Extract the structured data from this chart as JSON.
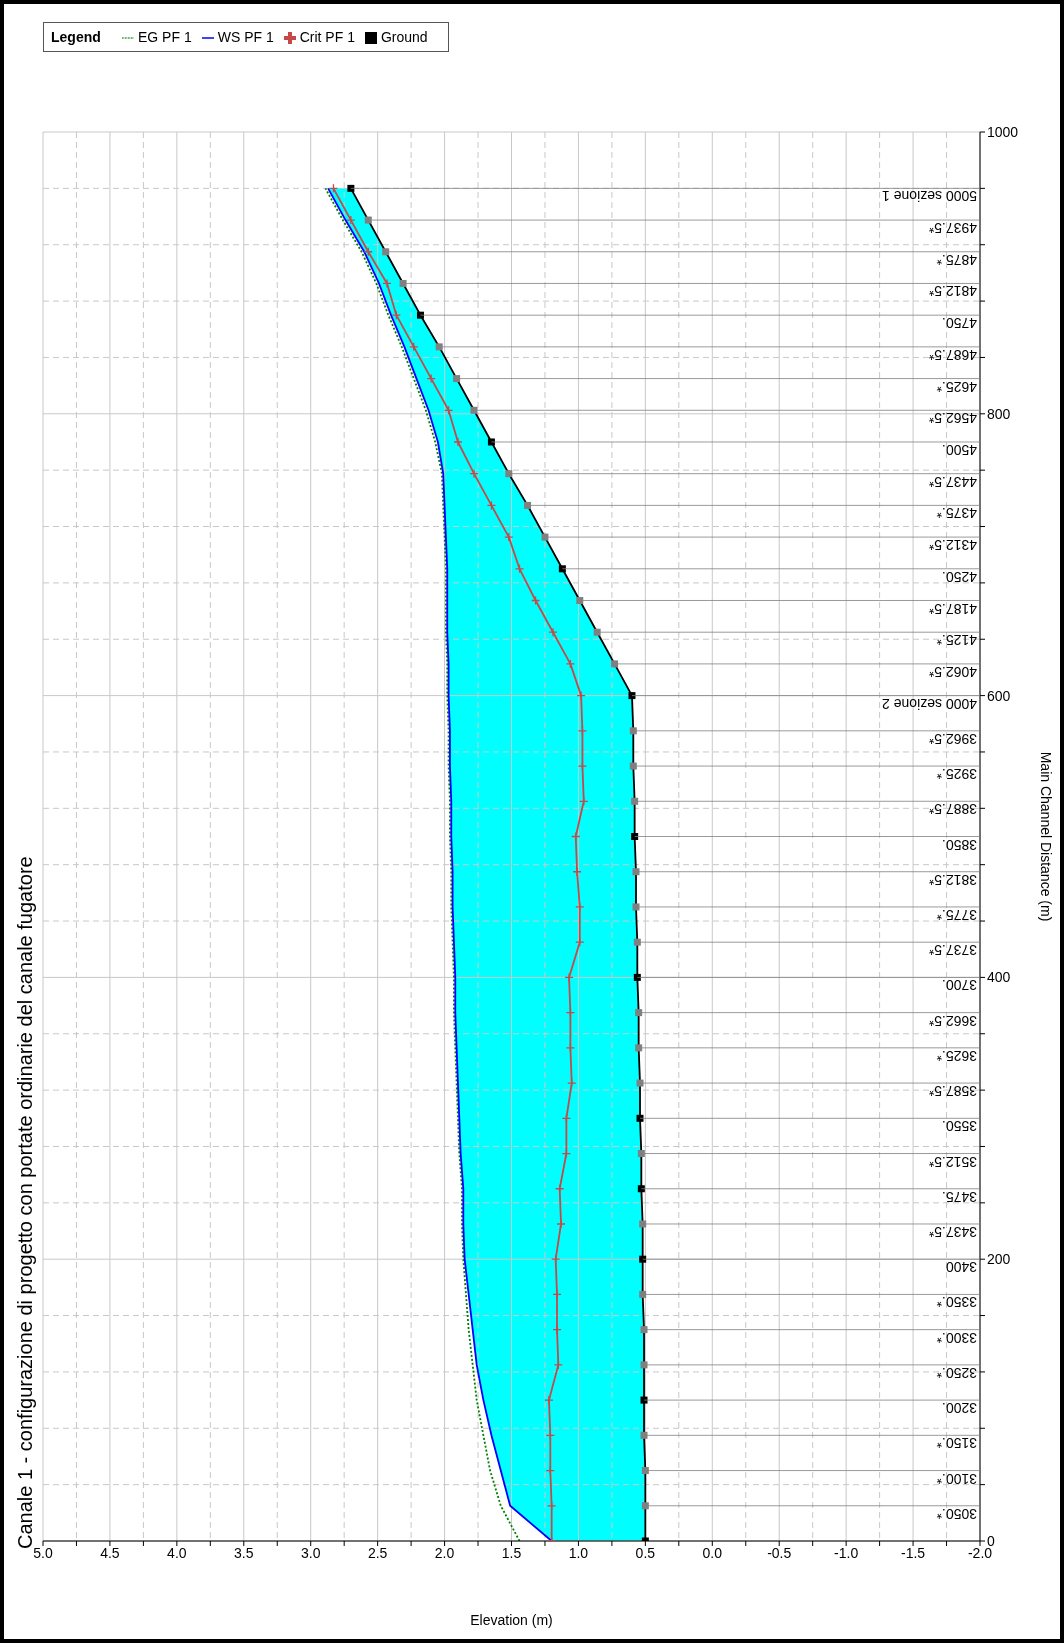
{
  "chart_data": {
    "type": "line",
    "title": "Canale 1 - configurazione di progetto con portate ordinarie del canale fugatore",
    "xlabel": "Elevation (m)",
    "ylabel": "Main Channel Distance (m)",
    "legend_title": "Legend",
    "legend": "top left",
    "grid": true,
    "xlim": [
      5,
      -2
    ],
    "ylim": [
      0,
      1000
    ],
    "xticks": [
      {
        "value": 5,
        "label": "5.0"
      },
      {
        "value": 4.75,
        "label": null
      },
      {
        "value": 4.5,
        "label": "4.5"
      },
      {
        "value": 4.25,
        "label": null
      },
      {
        "value": 4,
        "label": "4.0"
      },
      {
        "value": 3.75,
        "label": null
      },
      {
        "value": 3.5,
        "label": "3.5"
      },
      {
        "value": 3.25,
        "label": null
      },
      {
        "value": 3,
        "label": "3.0"
      },
      {
        "value": 2.75,
        "label": null
      },
      {
        "value": 2.5,
        "label": "2.5"
      },
      {
        "value": 2.25,
        "label": null
      },
      {
        "value": 2,
        "label": "2.0"
      },
      {
        "value": 1.75,
        "label": null
      },
      {
        "value": 1.5,
        "label": "1.5"
      },
      {
        "value": 1.25,
        "label": null
      },
      {
        "value": 1,
        "label": "1.0"
      },
      {
        "value": 0.75,
        "label": null
      },
      {
        "value": 0.5,
        "label": "0.5"
      },
      {
        "value": 0.25,
        "label": null
      },
      {
        "value": 0,
        "label": "0.0"
      },
      {
        "value": -0.25,
        "label": null
      },
      {
        "value": -0.5,
        "label": "-0.5"
      },
      {
        "value": -0.75,
        "label": null
      },
      {
        "value": -1,
        "label": "-1.0"
      },
      {
        "value": -1.25,
        "label": null
      },
      {
        "value": -1.5,
        "label": "-1.5"
      },
      {
        "value": -1.75,
        "label": null
      },
      {
        "value": -2,
        "label": "-2.0"
      }
    ],
    "yticks": [
      0,
      {
        "value": 40,
        "label": null
      },
      {
        "value": 80,
        "label": null
      },
      {
        "value": 120,
        "label": null
      },
      {
        "value": 160,
        "label": null
      },
      200,
      {
        "value": 240,
        "label": null
      },
      {
        "value": 280,
        "label": null
      },
      {
        "value": 320,
        "label": null
      },
      {
        "value": 360,
        "label": null
      },
      400,
      {
        "value": 440,
        "label": null
      },
      {
        "value": 480,
        "label": null
      },
      {
        "value": 520,
        "label": null
      },
      {
        "value": 560,
        "label": null
      },
      600,
      {
        "value": 640,
        "label": null
      },
      {
        "value": 680,
        "label": null
      },
      {
        "value": 720,
        "label": null
      },
      {
        "value": 760,
        "label": null
      },
      800,
      {
        "value": 840,
        "label": null
      },
      {
        "value": 880,
        "label": null
      },
      {
        "value": 920,
        "label": null
      },
      {
        "value": 960,
        "label": null
      },
      1000
    ],
    "series": [
      {
        "name": "EG  PF 1",
        "color": "#008000",
        "line_style": "dotted",
        "x": [
          1.44,
          1.58,
          1.66,
          1.71,
          1.76,
          1.79,
          1.82,
          1.84,
          1.86,
          1.87,
          1.87,
          1.89,
          1.9,
          1.91,
          1.92,
          1.93,
          1.93,
          1.94,
          1.95,
          1.95,
          1.96,
          1.96,
          1.97,
          1.97,
          1.98,
          1.98,
          1.99,
          1.99,
          1.99,
          2.0,
          2.01,
          2.02,
          2.07,
          2.14,
          2.23,
          2.32,
          2.42,
          2.51,
          2.62,
          2.76,
          2.89
        ],
        "values": [
          0,
          25,
          50,
          75,
          100,
          125,
          150,
          175,
          200,
          225,
          250,
          275,
          300,
          325,
          350,
          375,
          400,
          425,
          450,
          475,
          500,
          525,
          550,
          575,
          600,
          622.5,
          645,
          667.5,
          690,
          712.5,
          735,
          757.5,
          780,
          802.5,
          825,
          847.5,
          870,
          892.5,
          915,
          937.5,
          960
        ]
      },
      {
        "name": "WS  PF 1",
        "color": "#0000ff",
        "x": [
          1.2,
          1.51,
          1.58,
          1.65,
          1.71,
          1.76,
          1.79,
          1.82,
          1.85,
          1.86,
          1.86,
          1.88,
          1.89,
          1.9,
          1.91,
          1.92,
          1.92,
          1.93,
          1.94,
          1.94,
          1.95,
          1.95,
          1.96,
          1.96,
          1.97,
          1.97,
          1.98,
          1.98,
          1.98,
          1.99,
          2.0,
          2.01,
          2.05,
          2.12,
          2.21,
          2.3,
          2.4,
          2.49,
          2.6,
          2.74,
          2.87
        ],
        "values": [
          0,
          25,
          50,
          75,
          100,
          125,
          150,
          175,
          200,
          225,
          250,
          275,
          300,
          325,
          350,
          375,
          400,
          425,
          450,
          475,
          500,
          525,
          550,
          575,
          600,
          622.5,
          645,
          667.5,
          690,
          712.5,
          735,
          757.5,
          780,
          802.5,
          825,
          847.5,
          870,
          892.5,
          915,
          937.5,
          960
        ]
      },
      {
        "name": "Crit  PF 1",
        "color": "#c84848",
        "marker": "cross",
        "x": [
          1.2,
          1.2,
          1.21,
          1.21,
          1.22,
          1.15,
          1.16,
          1.16,
          1.17,
          1.13,
          1.14,
          1.09,
          1.09,
          1.05,
          1.06,
          1.06,
          1.07,
          0.99,
          0.99,
          1.01,
          1.02,
          0.96,
          0.97,
          0.97,
          0.98,
          1.06,
          1.19,
          1.32,
          1.44,
          1.52,
          1.65,
          1.78,
          1.9,
          1.97,
          2.1,
          2.23,
          2.36,
          2.43,
          2.57,
          2.7,
          2.83
        ],
        "values": [
          0,
          25,
          50,
          75,
          100,
          125,
          150,
          175,
          200,
          225,
          250,
          275,
          300,
          325,
          350,
          375,
          400,
          425,
          450,
          475,
          500,
          525,
          550,
          575,
          600,
          622.5,
          645,
          667.5,
          690,
          712.5,
          735,
          757.5,
          780,
          802.5,
          825,
          847.5,
          870,
          892.5,
          915,
          937.5,
          960
        ]
      },
      {
        "name": "Ground",
        "color": "#000000",
        "marker": "square",
        "colors": [
          "#000000",
          "#808080",
          "#808080",
          "#808080",
          "#000000",
          "#808080",
          "#808080",
          "#808080",
          "#000000",
          "#808080",
          "#000000",
          "#808080",
          "#000000",
          "#808080",
          "#808080",
          "#808080",
          "#000000",
          "#808080",
          "#808080",
          "#808080",
          "#000000",
          "#808080",
          "#808080",
          "#808080",
          "#000000",
          "#808080",
          "#808080",
          "#808080",
          "#000000",
          "#808080",
          "#808080",
          "#808080",
          "#000000",
          "#808080",
          "#808080",
          "#808080",
          "#000000",
          "#808080",
          "#808080",
          "#808080",
          "#000000"
        ],
        "x": [
          0.5,
          0.5,
          0.5,
          0.51,
          0.51,
          0.51,
          0.51,
          0.52,
          0.52,
          0.52,
          0.53,
          0.53,
          0.54,
          0.54,
          0.55,
          0.55,
          0.56,
          0.56,
          0.57,
          0.57,
          0.58,
          0.58,
          0.59,
          0.59,
          0.6,
          0.73,
          0.86,
          0.99,
          1.12,
          1.25,
          1.38,
          1.52,
          1.65,
          1.78,
          1.91,
          2.04,
          2.18,
          2.31,
          2.44,
          2.57,
          2.7
        ],
        "values": [
          0,
          25,
          50,
          75,
          100,
          125,
          150,
          175,
          200,
          225,
          250,
          275,
          300,
          325,
          350,
          375,
          400,
          425,
          450,
          475,
          500,
          525,
          550,
          575,
          600,
          622.5,
          645,
          667.5,
          690,
          712.5,
          735,
          757.5,
          780,
          802.5,
          825,
          847.5,
          870,
          892.5,
          915,
          937.5,
          960
        ]
      }
    ],
    "annotations": [
      {
        "text": "3050.*",
        "x": 0.5,
        "y": 25
      },
      {
        "text": "3100.*",
        "x": 0.5,
        "y": 50
      },
      {
        "text": "3150.*",
        "x": 0.51,
        "y": 75
      },
      {
        "text": "3200.",
        "x": 0.51,
        "y": 100
      },
      {
        "text": "3250.*",
        "x": 0.51,
        "y": 125
      },
      {
        "text": "3300.*",
        "x": 0.51,
        "y": 150
      },
      {
        "text": "3350.*",
        "x": 0.52,
        "y": 175
      },
      {
        "text": "3400",
        "x": 0.52,
        "y": 200
      },
      {
        "text": "3437.5*",
        "x": 0.52,
        "y": 225
      },
      {
        "text": "3475.",
        "x": 0.53,
        "y": 250
      },
      {
        "text": "3512.5*",
        "x": 0.53,
        "y": 275
      },
      {
        "text": "3550.",
        "x": 0.54,
        "y": 300
      },
      {
        "text": "3587.5*",
        "x": 0.54,
        "y": 325
      },
      {
        "text": "3625.*",
        "x": 0.55,
        "y": 350
      },
      {
        "text": "3662.5*",
        "x": 0.55,
        "y": 375
      },
      {
        "text": "3700.",
        "x": 0.56,
        "y": 400
      },
      {
        "text": "3737.5*",
        "x": 0.56,
        "y": 425
      },
      {
        "text": "3775.*",
        "x": 0.57,
        "y": 450
      },
      {
        "text": "3812.5*",
        "x": 0.57,
        "y": 475
      },
      {
        "text": "3850.",
        "x": 0.58,
        "y": 500
      },
      {
        "text": "3887.5*",
        "x": 0.58,
        "y": 525
      },
      {
        "text": "3925.*",
        "x": 0.59,
        "y": 550
      },
      {
        "text": "3962.5*",
        "x": 0.59,
        "y": 575
      },
      {
        "text": "4000 sezione 2",
        "x": 0.6,
        "y": 600
      },
      {
        "text": "4062.5*",
        "x": 0.73,
        "y": 622.5
      },
      {
        "text": "4125.*",
        "x": 0.86,
        "y": 645
      },
      {
        "text": "4187.5*",
        "x": 0.99,
        "y": 667.5
      },
      {
        "text": "4250.",
        "x": 1.12,
        "y": 690
      },
      {
        "text": "4312.5*",
        "x": 1.25,
        "y": 712.5
      },
      {
        "text": "4375.*",
        "x": 1.38,
        "y": 735
      },
      {
        "text": "4437.5*",
        "x": 1.52,
        "y": 757.5
      },
      {
        "text": "4500.",
        "x": 1.65,
        "y": 780
      },
      {
        "text": "4562.5*",
        "x": 1.78,
        "y": 802.5
      },
      {
        "text": "4625.*",
        "x": 1.91,
        "y": 825
      },
      {
        "text": "4687.5*",
        "x": 2.04,
        "y": 847.5
      },
      {
        "text": "4750.",
        "x": 2.18,
        "y": 870
      },
      {
        "text": "4812.5*",
        "x": 2.31,
        "y": 892.5
      },
      {
        "text": "4875.*",
        "x": 2.44,
        "y": 915
      },
      {
        "text": "4937.5*",
        "x": 2.57,
        "y": 937.5
      },
      {
        "text": "5000 sezione 1",
        "x": 2.7,
        "y": 960
      }
    ]
  }
}
